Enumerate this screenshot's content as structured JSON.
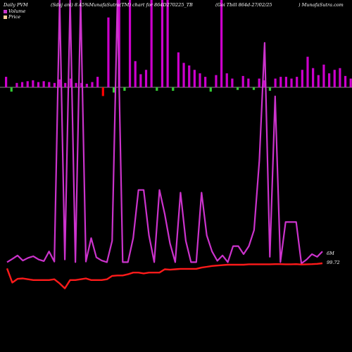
{
  "header": {
    "left": "Daily PVM",
    "center": "(Sdaj ani) 8.45%MunafaSutra(TM) chart for 864D270225_TB",
    "right_a": "(Goi  Tbill 864d-27/02/25",
    "right_b": ") MunafaSutra.com"
  },
  "legend": {
    "volume_label": "Volume",
    "price_label": "Price",
    "volume_color": "#cc33cc",
    "price_color": "#ffcc99"
  },
  "end_labels": {
    "volume": "6M",
    "price": "99.72"
  },
  "colors": {
    "volume_line": "#cc33cc",
    "price_line": "#ff1a1a",
    "bar_up": "#cc00cc",
    "bar_down": "#33cc33",
    "bar_neg_red": "#ff0000",
    "axis": "#888888"
  },
  "chart_data": {
    "type": "line",
    "x": [
      0,
      1,
      2,
      3,
      4,
      5,
      6,
      7,
      8,
      9,
      10,
      11,
      12,
      13,
      14,
      15,
      16,
      17,
      18,
      19,
      20,
      21,
      22,
      23,
      24,
      25,
      26,
      27,
      28,
      29,
      30,
      31,
      32,
      33,
      34,
      35,
      36,
      37,
      38,
      39,
      40,
      41,
      42,
      43,
      44,
      45,
      46,
      47,
      48,
      49,
      50,
      51,
      52,
      53,
      54,
      55,
      56,
      57,
      58,
      59,
      60
    ],
    "series": [
      {
        "name": "Volume",
        "values": [
          2.0,
          3.2,
          4.5,
          2.6,
          3.6,
          4.2,
          3.0,
          2.4,
          6.0,
          2.2,
          100,
          3.0,
          100,
          2.0,
          100,
          2.2,
          11.0,
          3.8,
          2.6,
          2.0,
          10.0,
          100,
          2.0,
          2.0,
          11.0,
          29.0,
          29.0,
          12.0,
          2.0,
          29.0,
          20.0,
          9.0,
          2.0,
          28.0,
          10.0,
          2.0,
          2.0,
          28.0,
          12.0,
          6.0,
          2.5,
          4.5,
          2.0,
          8.0,
          8.0,
          5.0,
          8.0,
          14.0,
          40.0,
          84.0,
          4.0,
          64.0,
          2.0,
          17.0,
          17.0,
          17.0,
          1.5,
          3.0,
          5.0,
          4.0,
          6.0
        ]
      },
      {
        "name": "Price",
        "values": [
          99.1,
          97.4,
          97.85,
          97.9,
          97.8,
          97.7,
          97.7,
          97.7,
          97.7,
          97.8,
          97.3,
          96.7,
          97.7,
          97.7,
          97.8,
          97.9,
          97.7,
          97.7,
          97.7,
          97.8,
          98.2,
          98.25,
          98.25,
          98.4,
          98.6,
          98.6,
          98.5,
          98.6,
          98.6,
          98.6,
          99.0,
          98.95,
          99.0,
          99.05,
          99.05,
          99.05,
          99.05,
          99.2,
          99.3,
          99.4,
          99.45,
          99.5,
          99.55,
          99.55,
          99.55,
          99.55,
          99.6,
          99.6,
          99.6,
          99.6,
          99.6,
          99.62,
          99.62,
          99.6,
          99.6,
          99.62,
          99.58,
          99.6,
          99.62,
          99.65,
          99.72
        ]
      }
    ],
    "bars": [
      {
        "v": 0.12,
        "c": "up"
      },
      {
        "v": -0.05,
        "c": "down"
      },
      {
        "v": 0.05,
        "c": "up"
      },
      {
        "v": 0.06,
        "c": "up"
      },
      {
        "v": 0.07,
        "c": "up"
      },
      {
        "v": 0.08,
        "c": "up"
      },
      {
        "v": 0.06,
        "c": "up"
      },
      {
        "v": 0.07,
        "c": "up"
      },
      {
        "v": 0.06,
        "c": "up"
      },
      {
        "v": 0.05,
        "c": "up"
      },
      {
        "v": 0.09,
        "c": "up"
      },
      {
        "v": 0.05,
        "c": "up"
      },
      {
        "v": 0.1,
        "c": "up"
      },
      {
        "v": 0.05,
        "c": "up"
      },
      {
        "v": 0.05,
        "c": "up"
      },
      {
        "v": 0.04,
        "c": "up"
      },
      {
        "v": 0.06,
        "c": "up"
      },
      {
        "v": 0.12,
        "c": "up"
      },
      {
        "v": -0.1,
        "c": "red"
      },
      {
        "v": 0.8,
        "c": "up"
      },
      {
        "v": -0.06,
        "c": "down"
      },
      {
        "v": 1.0,
        "c": "up"
      },
      {
        "v": -0.04,
        "c": "down"
      },
      {
        "v": 1.0,
        "c": "up"
      },
      {
        "v": 0.3,
        "c": "up"
      },
      {
        "v": 0.15,
        "c": "up"
      },
      {
        "v": 0.2,
        "c": "up"
      },
      {
        "v": 1.0,
        "c": "up"
      },
      {
        "v": -0.04,
        "c": "down"
      },
      {
        "v": 1.0,
        "c": "up"
      },
      {
        "v": 1.0,
        "c": "up"
      },
      {
        "v": -0.04,
        "c": "down"
      },
      {
        "v": 0.4,
        "c": "up"
      },
      {
        "v": 0.28,
        "c": "up"
      },
      {
        "v": 0.25,
        "c": "up"
      },
      {
        "v": 0.2,
        "c": "up"
      },
      {
        "v": 0.16,
        "c": "up"
      },
      {
        "v": 0.12,
        "c": "up"
      },
      {
        "v": -0.05,
        "c": "down"
      },
      {
        "v": 0.14,
        "c": "up"
      },
      {
        "v": 1.0,
        "c": "up"
      },
      {
        "v": 0.16,
        "c": "up"
      },
      {
        "v": 0.1,
        "c": "up"
      },
      {
        "v": -0.03,
        "c": "down"
      },
      {
        "v": 0.13,
        "c": "up"
      },
      {
        "v": 0.1,
        "c": "up"
      },
      {
        "v": -0.03,
        "c": "down"
      },
      {
        "v": 0.1,
        "c": "up"
      },
      {
        "v": 0.08,
        "c": "up"
      },
      {
        "v": -0.04,
        "c": "down"
      },
      {
        "v": 0.1,
        "c": "up"
      },
      {
        "v": 0.12,
        "c": "up"
      },
      {
        "v": 0.12,
        "c": "up"
      },
      {
        "v": 0.1,
        "c": "up"
      },
      {
        "v": 0.12,
        "c": "up"
      },
      {
        "v": 0.2,
        "c": "up"
      },
      {
        "v": 0.35,
        "c": "up"
      },
      {
        "v": 0.22,
        "c": "up"
      },
      {
        "v": 0.14,
        "c": "up"
      },
      {
        "v": 0.26,
        "c": "up"
      },
      {
        "v": 0.16,
        "c": "up"
      },
      {
        "v": 0.2,
        "c": "up"
      },
      {
        "v": 0.22,
        "c": "up"
      },
      {
        "v": 0.13,
        "c": "up"
      },
      {
        "v": 0.1,
        "c": "up"
      }
    ]
  }
}
